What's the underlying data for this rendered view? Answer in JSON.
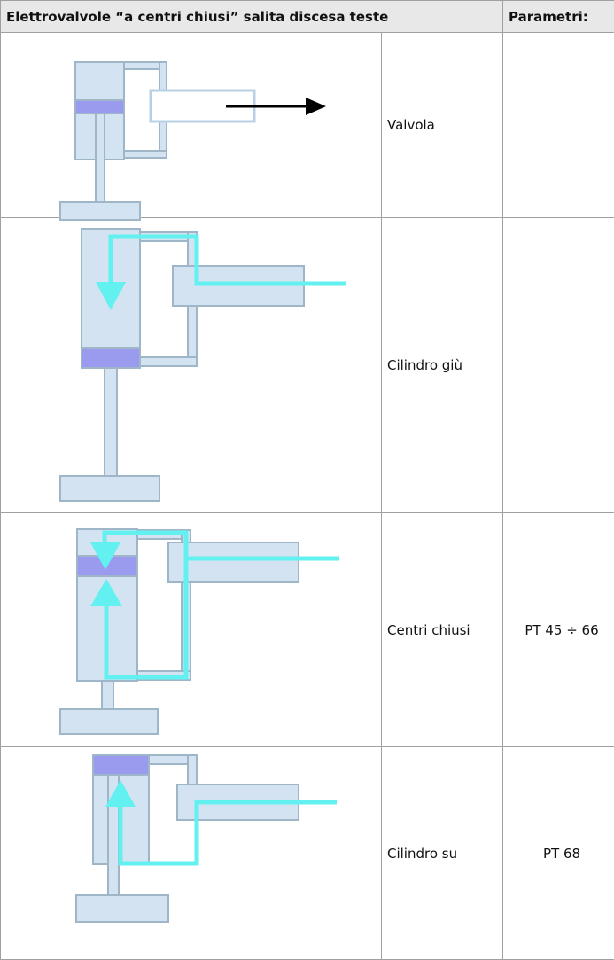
{
  "table": {
    "header": [
      "Elettrovalvole “a centri chiusi” salita discesa teste",
      "Parametri:"
    ],
    "rows": [
      {
        "label": "Valvola"
      },
      {
        "label": "Cilindro giù"
      },
      {
        "label": "Centri chiusi",
        "param": "PT 45 ÷ 66"
      },
      {
        "label": "Cilindro su",
        "param": "PT 68"
      }
    ]
  }
}
